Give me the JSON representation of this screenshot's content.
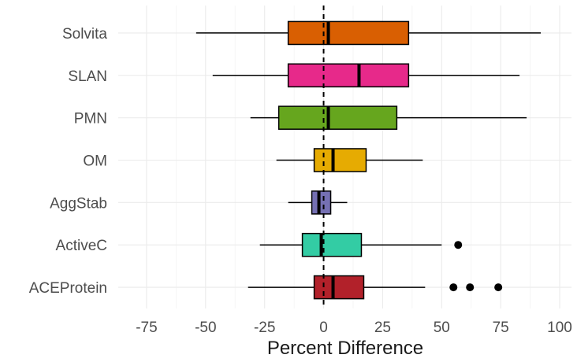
{
  "chart_data": {
    "type": "box",
    "title": "",
    "xlabel": "Percent Difference",
    "ylabel": "",
    "xlim": [
      -87,
      105
    ],
    "x_ticks": [
      -75,
      -50,
      -25,
      0,
      25,
      50,
      75,
      100
    ],
    "x_tick_labels": [
      "-75",
      "-50",
      "-25",
      "0",
      "25",
      "50",
      "75",
      "100"
    ],
    "grid": true,
    "reference_line": {
      "x": 0,
      "style": "dashed"
    },
    "categories": [
      "Solvita",
      "SLAN",
      "PMN",
      "OM",
      "AggStab",
      "ActiveC",
      "ACEProtein"
    ],
    "boxes": [
      {
        "name": "Solvita",
        "whisker_low": -54,
        "q1": -15,
        "median": 2,
        "q3": 36,
        "whisker_high": 92,
        "outliers": [],
        "color": "#d95f02"
      },
      {
        "name": "SLAN",
        "whisker_low": -47,
        "q1": -15,
        "median": 15,
        "q3": 36,
        "whisker_high": 83,
        "outliers": [],
        "color": "#e7298a"
      },
      {
        "name": "PMN",
        "whisker_low": -31,
        "q1": -19,
        "median": 2,
        "q3": 31,
        "whisker_high": 86,
        "outliers": [],
        "color": "#66a61e"
      },
      {
        "name": "OM",
        "whisker_low": -20,
        "q1": -4,
        "median": 4,
        "q3": 18,
        "whisker_high": 42,
        "outliers": [],
        "color": "#e6ab02"
      },
      {
        "name": "AggStab",
        "whisker_low": -15,
        "q1": -5,
        "median": -2,
        "q3": 3,
        "whisker_high": 10,
        "outliers": [],
        "color": "#7570b3"
      },
      {
        "name": "ActiveC",
        "whisker_low": -27,
        "q1": -9,
        "median": -1,
        "q3": 16,
        "whisker_high": 50,
        "outliers": [
          57
        ],
        "color": "#33cca4"
      },
      {
        "name": "ACEProtein",
        "whisker_low": -32,
        "q1": -4,
        "median": 4,
        "q3": 17,
        "whisker_high": 43,
        "outliers": [
          55,
          62,
          74
        ],
        "color": "#b2212a"
      }
    ]
  }
}
